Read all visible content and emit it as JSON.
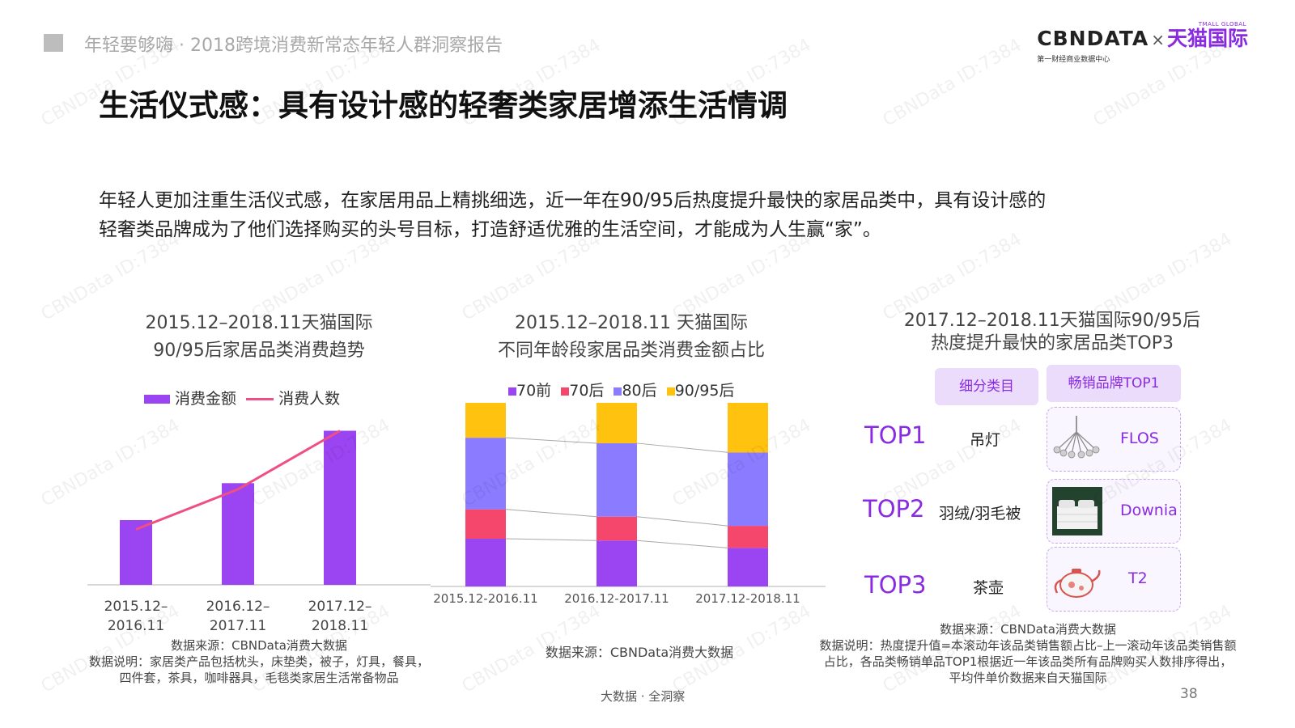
{
  "header": {
    "report_title": "年轻要够嗨 · 2018跨境消费新常态年轻人群洞察报告"
  },
  "logo": {
    "brand": "CBNDATA",
    "times": "×",
    "partner": "天猫国际",
    "partner_en": "TMALL GLOBAL",
    "tagline": "第一财经商业数据中心"
  },
  "title": "生活仪式感：具有设计感的轻奢类家居增添生活情调",
  "intro": [
    "年轻人更加注重生活仪式感，在家居用品上精挑细选，近一年在90/95后热度提升最快的家居品类中，具有设计感的",
    "轻奢类品牌成为了他们选择购买的头号目标，打造舒适优雅的生活空间，才能成为人生赢“家”。"
  ],
  "watermark": "CBNData ID:7384",
  "colors": {
    "purple": "#9b45f2",
    "pink": "#ef4f82",
    "red": "#f5476b",
    "blue": "#8b7bff",
    "yellow": "#ffc20e",
    "accent": "#8a2be2"
  },
  "chart_data": [
    {
      "type": "bar",
      "title_lines": [
        "2015.12–2018.11天猫国际",
        "90/95后家居品类消费趋势"
      ],
      "categories": [
        [
          "2015.12–",
          "2016.11"
        ],
        [
          "2016.12–",
          "2017.11"
        ],
        [
          "2017.12–",
          "2018.11"
        ]
      ],
      "series": [
        {
          "name": "消费金额",
          "kind": "bar",
          "values": [
            0.42,
            0.66,
            1.0
          ]
        },
        {
          "name": "消费人数",
          "kind": "line",
          "values": [
            0.36,
            0.62,
            1.0
          ]
        }
      ],
      "ylim": [
        0,
        1.05
      ],
      "legend": "top",
      "source": "数据来源：CBNData消费大数据",
      "notes": [
        "数据说明：家居类产品包括枕头，床垫类，被子，灯具，餐具，",
        "四件套，茶具，咖啡器具，毛毯类家居生活常备物品"
      ]
    },
    {
      "type": "bar",
      "stacked": true,
      "title_lines": [
        "2015.12–2018.11 天猫国际",
        "不同年龄段家居品类消费金额占比"
      ],
      "categories": [
        "2015.12-2016.11",
        "2016.12-2017.11",
        "2017.12-2018.11"
      ],
      "series": [
        {
          "name": "70前",
          "values": [
            26,
            25,
            21
          ]
        },
        {
          "name": "70后",
          "values": [
            16,
            13,
            12
          ]
        },
        {
          "name": "80后",
          "values": [
            39,
            40,
            40
          ]
        },
        {
          "name": "90/95后",
          "values": [
            19,
            22,
            27
          ]
        }
      ],
      "ylim": [
        0,
        100
      ],
      "legend": "top",
      "source": "数据来源：CBNData消费大数据"
    }
  ],
  "top3": {
    "title_lines": [
      "2017.12–2018.11天猫国际90/95后",
      "热度提升最快的家居品类TOP3"
    ],
    "headers": [
      "细分类目",
      "畅销品牌TOP1"
    ],
    "rows": [
      {
        "rank": "TOP1",
        "category": "吊灯",
        "brand": "FLOS"
      },
      {
        "rank": "TOP2",
        "category": "羽绒/羽毛被",
        "brand": "Downia"
      },
      {
        "rank": "TOP3",
        "category": "茶壶",
        "brand": "T2"
      }
    ],
    "notes": [
      "数据来源：CBNData消费大数据",
      "数据说明：热度提升值=本滚动年该品类销售额占比–上一滚动年该品类销售额",
      "占比，各品类畅销单品TOP1根据近一年该品类所有品牌购买人数排序得出，",
      "平均件单价数据来自天猫国际"
    ]
  },
  "footer": "大数据 · 全洞察",
  "page_number": "38"
}
